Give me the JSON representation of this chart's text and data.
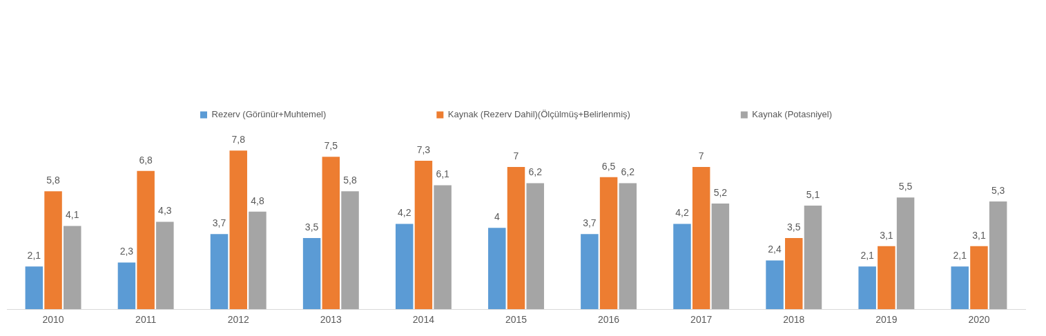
{
  "chart_data": {
    "type": "bar",
    "categories": [
      "2010",
      "2011",
      "2012",
      "2013",
      "2014",
      "2015",
      "2016",
      "2017",
      "2018",
      "2019",
      "2020"
    ],
    "series": [
      {
        "name": "Rezerv (Görünür+Muhtemel)",
        "color": "#5b9bd5",
        "values": [
          2.1,
          2.3,
          3.7,
          3.5,
          4.2,
          4,
          3.7,
          4.2,
          2.4,
          2.1,
          2.1
        ],
        "value_labels": [
          "2,1",
          "2,3",
          "3,7",
          "3,5",
          "4,2",
          "4",
          "3,7",
          "4,2",
          "2,4",
          "2,1",
          "2,1"
        ]
      },
      {
        "name": "Kaynak (Rezerv Dahil)(Ölçülmüş+Belirlenmiş)",
        "color": "#ed7d31",
        "values": [
          5.8,
          6.8,
          7.8,
          7.5,
          7.3,
          7,
          6.5,
          7,
          3.5,
          3.1,
          3.1
        ],
        "value_labels": [
          "5,8",
          "6,8",
          "7,8",
          "7,5",
          "7,3",
          "7",
          "6,5",
          "7",
          "3,5",
          "3,1",
          "3,1"
        ]
      },
      {
        "name": "Kaynak (Potasniyel)",
        "color": "#a5a5a5",
        "values": [
          4.1,
          4.3,
          4.8,
          5.8,
          6.1,
          6.2,
          6.2,
          5.2,
          5.1,
          5.5,
          5.3
        ],
        "value_labels": [
          "4,1",
          "4,3",
          "4,8",
          "5,8",
          "6,1",
          "6,2",
          "6,2",
          "5,2",
          "5,1",
          "5,5",
          "5,3"
        ]
      }
    ],
    "legend": "top",
    "grid": false,
    "tick_labels": "x"
  }
}
